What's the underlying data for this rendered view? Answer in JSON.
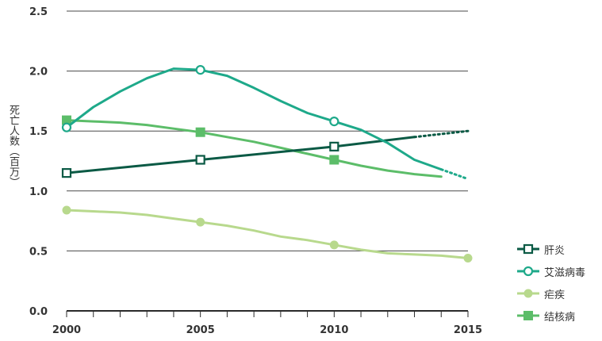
{
  "chart_data": {
    "type": "line",
    "ylabel": "死亡人数（百万）",
    "xlim": [
      2000,
      2015
    ],
    "ylim": [
      0,
      2.5
    ],
    "x_ticks": [
      "2000",
      "2005",
      "2010",
      "2015"
    ],
    "y_ticks": [
      "0.0",
      "0.5",
      "1.0",
      "1.5",
      "2.0",
      "2.5"
    ],
    "grid": "horizontal",
    "legend_position": "right",
    "series": [
      {
        "name": "肝炎",
        "color": "#0b5a45",
        "marker": "hollow-square",
        "x": [
          2000,
          2005,
          2010,
          2013
        ],
        "y": [
          1.15,
          1.26,
          1.37,
          1.45
        ],
        "projection": {
          "x": [
            2013,
            2015
          ],
          "y": [
            1.45,
            1.5
          ]
        },
        "marked_x": [
          2000,
          2005,
          2010
        ]
      },
      {
        "name": "艾滋病毒",
        "color": "#1ea98a",
        "marker": "hollow-circle",
        "x": [
          2000,
          2001,
          2002,
          2003,
          2004,
          2005,
          2006,
          2007,
          2008,
          2009,
          2010,
          2011,
          2012,
          2013,
          2014
        ],
        "y": [
          1.53,
          1.7,
          1.83,
          1.94,
          2.02,
          2.01,
          1.96,
          1.86,
          1.75,
          1.65,
          1.58,
          1.51,
          1.4,
          1.26,
          1.18
        ],
        "projection": {
          "x": [
            2014,
            2015
          ],
          "y": [
            1.18,
            1.1
          ]
        },
        "marked_x": [
          2000,
          2005,
          2010
        ]
      },
      {
        "name": "疟疾",
        "color": "#b8d98d",
        "marker": "filled-circle",
        "x": [
          2000,
          2001,
          2002,
          2003,
          2004,
          2005,
          2006,
          2007,
          2008,
          2009,
          2010,
          2011,
          2012,
          2013,
          2014,
          2015
        ],
        "y": [
          0.84,
          0.83,
          0.82,
          0.8,
          0.77,
          0.74,
          0.71,
          0.67,
          0.62,
          0.59,
          0.55,
          0.51,
          0.48,
          0.47,
          0.46,
          0.44
        ],
        "marked_x": [
          2000,
          2005,
          2010,
          2015
        ]
      },
      {
        "name": "结核病",
        "color": "#5cbd69",
        "marker": "filled-square",
        "x": [
          2000,
          2001,
          2002,
          2003,
          2004,
          2005,
          2006,
          2007,
          2008,
          2009,
          2010,
          2011,
          2012,
          2013,
          2014
        ],
        "y": [
          1.59,
          1.58,
          1.57,
          1.55,
          1.52,
          1.49,
          1.45,
          1.41,
          1.36,
          1.31,
          1.26,
          1.21,
          1.17,
          1.14,
          1.12
        ],
        "marked_x": [
          2000,
          2005,
          2010
        ]
      }
    ]
  }
}
